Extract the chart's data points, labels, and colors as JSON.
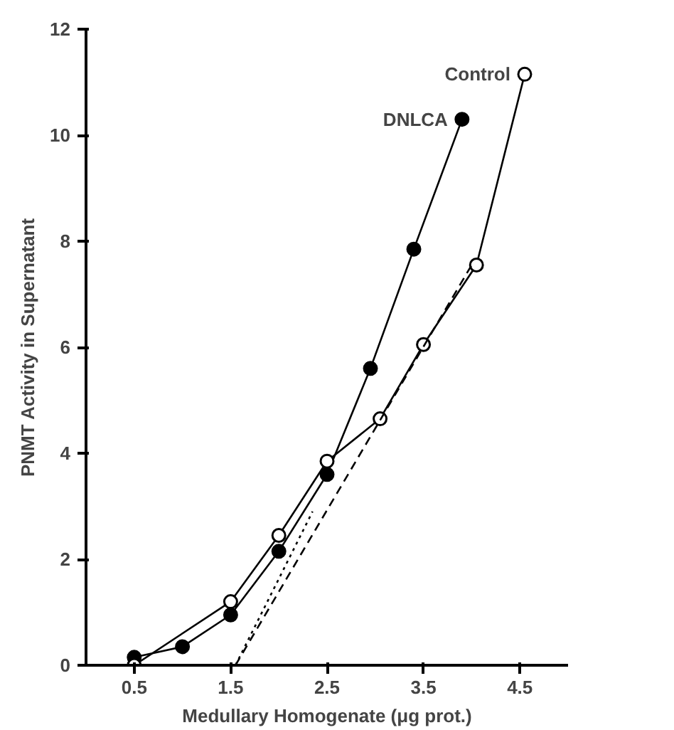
{
  "chart_data": {
    "type": "line",
    "xlabel": "Medullary Homogenate (μg prot.)",
    "ylabel": "PNMT Activity in Supernatant",
    "xlim": [
      0,
      5
    ],
    "ylim": [
      0,
      12
    ],
    "xticks": [
      0.5,
      1.5,
      2.5,
      3.5,
      4.5
    ],
    "yticks": [
      0,
      2,
      4,
      6,
      8,
      10,
      12
    ],
    "grid": false,
    "marker": "circle",
    "line_style": "solid",
    "series": [
      {
        "name": "DNLCA",
        "color": "#000000",
        "x": [
          0.5,
          1.0,
          1.5,
          2.0,
          2.5,
          2.95,
          3.4,
          3.9
        ],
        "values": [
          0.15,
          0.35,
          0.95,
          2.15,
          3.6,
          5.6,
          7.85,
          10.3
        ]
      },
      {
        "name": "Control",
        "color": "#ffffff",
        "x": [
          0.5,
          1.5,
          2.0,
          2.5,
          3.05,
          3.5,
          4.05,
          4.55
        ],
        "values": [
          0.0,
          1.2,
          2.45,
          3.85,
          4.65,
          6.05,
          7.55,
          11.15
        ]
      },
      {
        "color": "#000000",
        "marker": "none",
        "line_style": "dashed",
        "x": [
          1.55,
          4.0
        ],
        "values": [
          0.0,
          7.55
        ]
      },
      {
        "color": "#000000",
        "marker": "none",
        "line_style": "dotted",
        "x": [
          1.55,
          2.35
        ],
        "values": [
          0.0,
          2.9
        ]
      }
    ]
  }
}
